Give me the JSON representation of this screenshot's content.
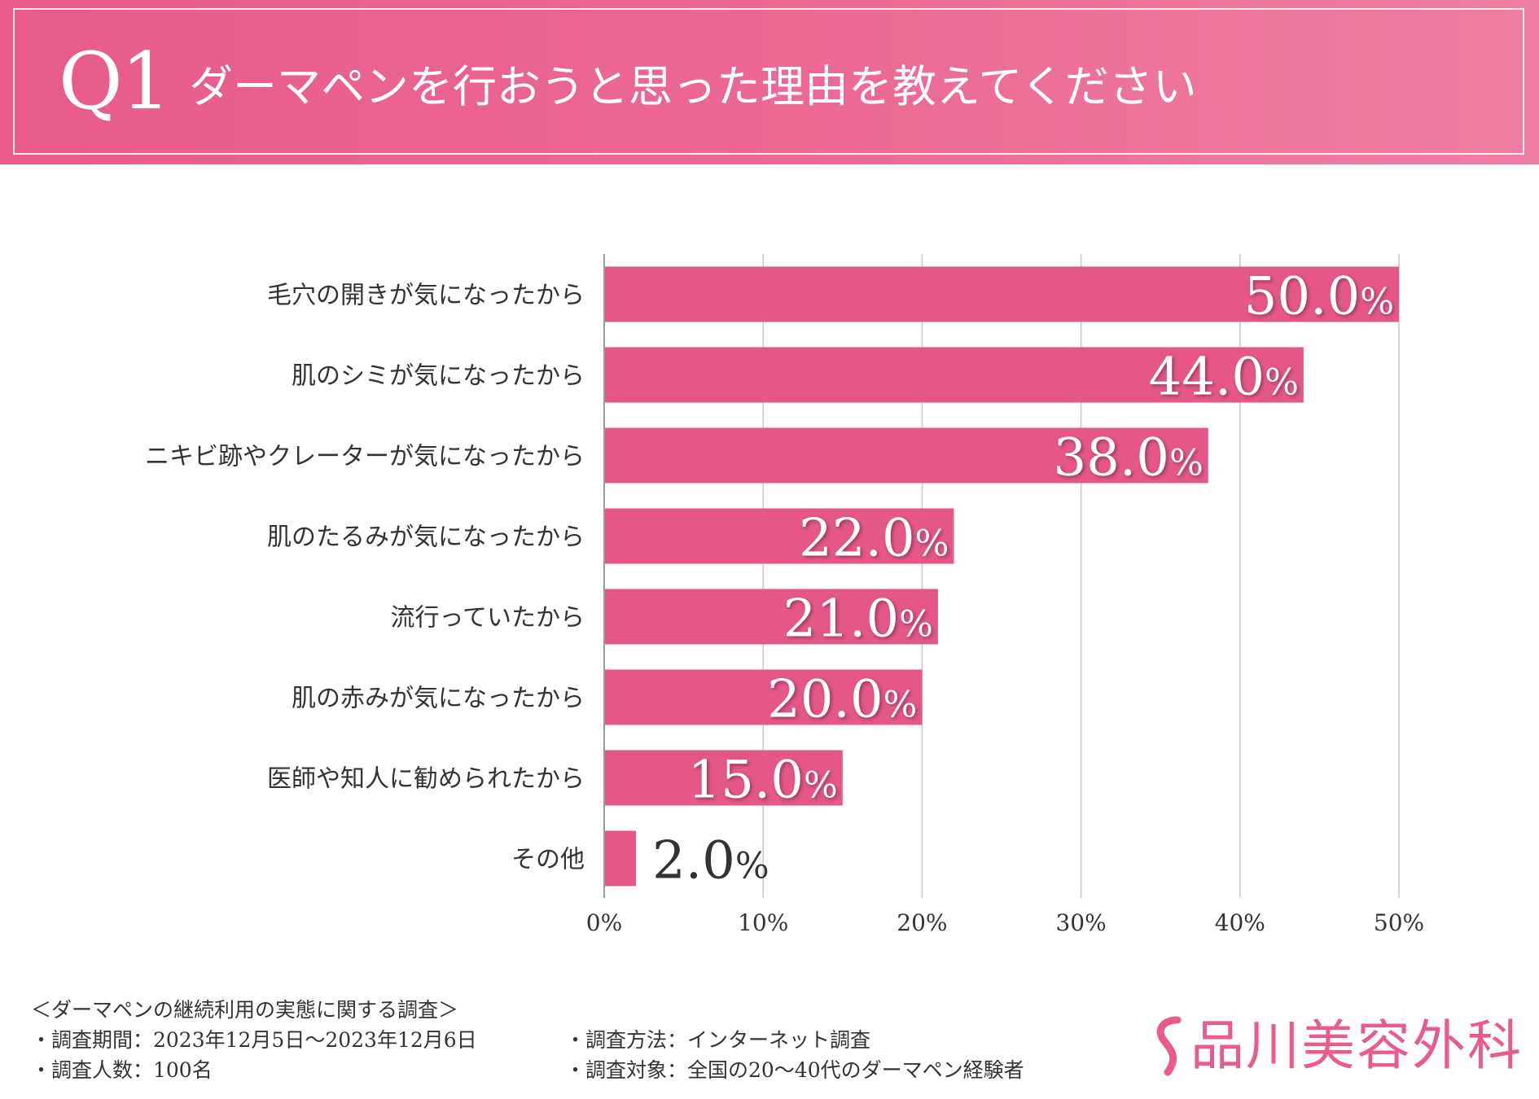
{
  "header": {
    "question_number": "Q1",
    "title": "ダーマペンを行おうと思った理由を教えてください"
  },
  "colors": {
    "accent": "#e85b8a",
    "bar": "#e55886",
    "grid": "#c8c8c8",
    "text": "#333333",
    "value_text_inside": "#ffffff",
    "value_text_outside": "#333333"
  },
  "chart_data": {
    "type": "bar",
    "orientation": "horizontal",
    "categories": [
      "毛穴の開きが気になったから",
      "肌のシミが気になったから",
      "ニキビ跡やクレーターが気になったから",
      "肌のたるみが気になったから",
      "流行っていたから",
      "肌の赤みが気になったから",
      "医師や知人に勧められたから",
      "その他"
    ],
    "values": [
      50.0,
      44.0,
      38.0,
      22.0,
      21.0,
      20.0,
      15.0,
      2.0
    ],
    "value_labels": [
      "50.0",
      "44.0",
      "38.0",
      "22.0",
      "21.0",
      "20.0",
      "15.0",
      "2.0"
    ],
    "value_unit": "%",
    "xticks": [
      "0%",
      "10%",
      "20%",
      "30%",
      "40%",
      "50%"
    ],
    "xlim": [
      0,
      50
    ],
    "grid": true,
    "title": "ダーマペンを行おうと思った理由を教えてください",
    "xlabel": "",
    "ylabel": ""
  },
  "footer": {
    "survey_title": "＜ダーマペンの継続利用の実態に関する調査＞",
    "period": "・調査期間：2023年12月5日〜2023年12月6日",
    "respondents": "・調査人数：100名",
    "method": "・調査方法：インターネット調査",
    "target": "・調査対象：全国の20〜40代のダーマペン経験者"
  },
  "brand": {
    "name": "品川美容外科",
    "logo_icon": "s-mark-icon"
  }
}
